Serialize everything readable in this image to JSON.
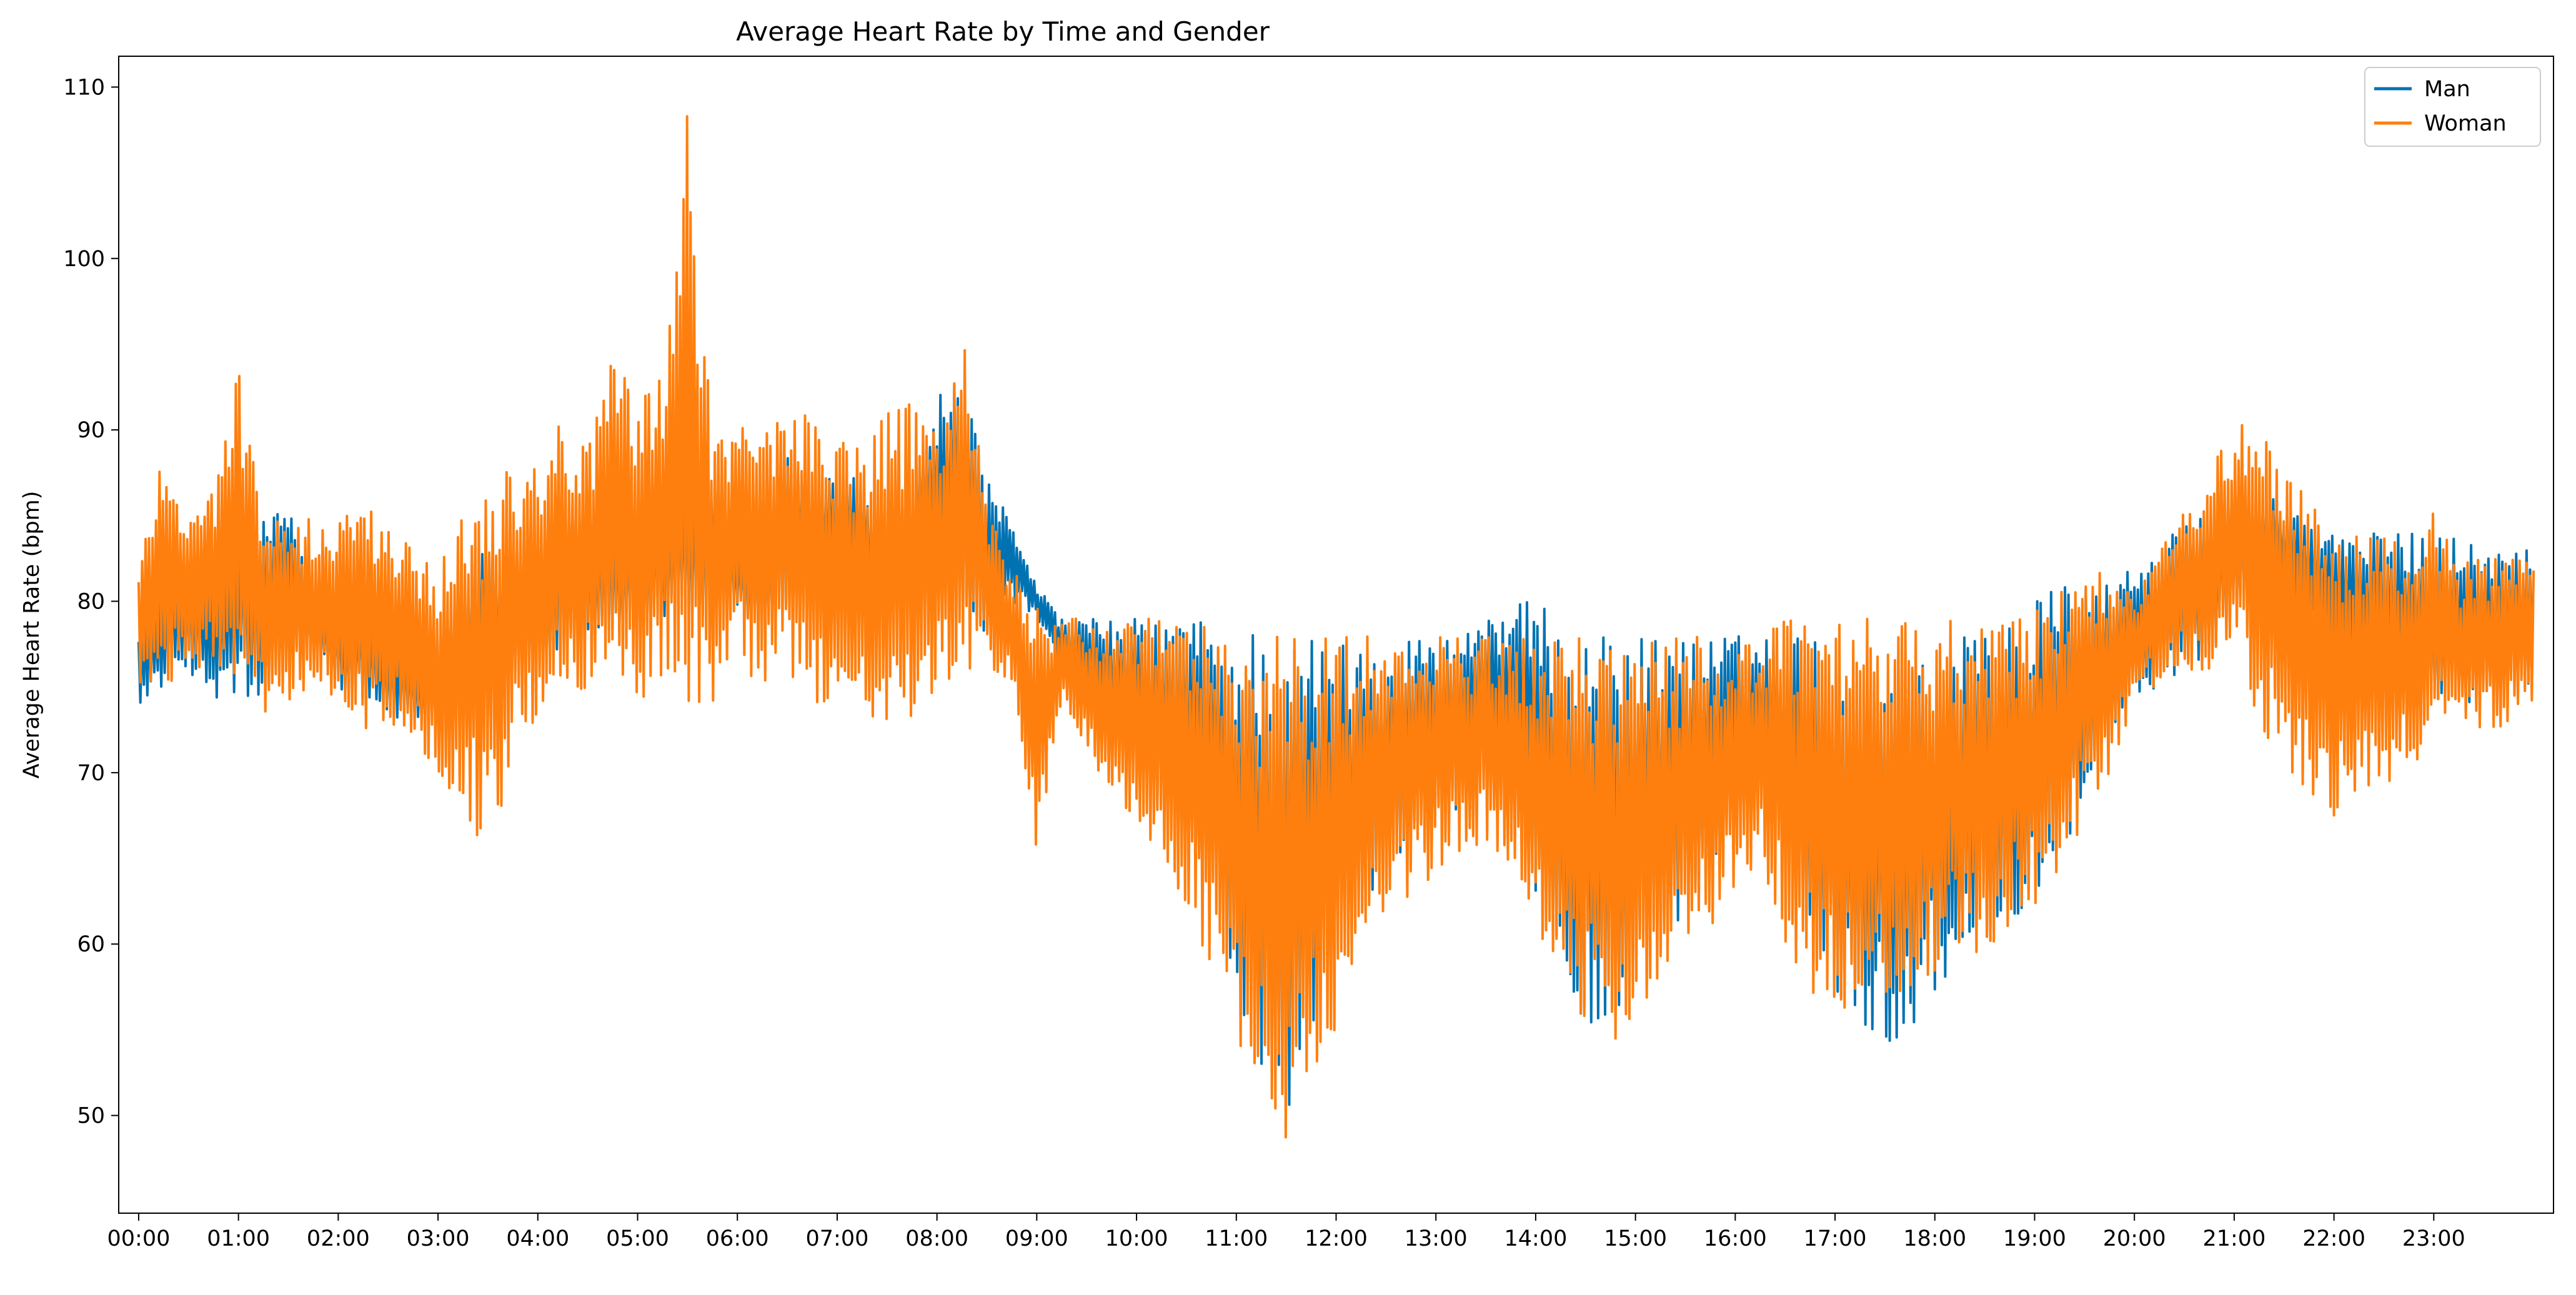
{
  "chart_data": {
    "type": "line",
    "title": "Average Heart Rate by Time and Gender",
    "xlabel": "",
    "ylabel": "Average Heart Rate (bpm)",
    "x_unit": "hours",
    "xlim": [
      -0.2,
      24.2
    ],
    "ylim": [
      44.3,
      111.8
    ],
    "grid": false,
    "legend_position": "top-right",
    "x_ticks": [
      {
        "value": 0,
        "label": "00:00"
      },
      {
        "value": 1,
        "label": "01:00"
      },
      {
        "value": 2,
        "label": "02:00"
      },
      {
        "value": 3,
        "label": "03:00"
      },
      {
        "value": 4,
        "label": "04:00"
      },
      {
        "value": 5,
        "label": "05:00"
      },
      {
        "value": 6,
        "label": "06:00"
      },
      {
        "value": 7,
        "label": "07:00"
      },
      {
        "value": 8,
        "label": "08:00"
      },
      {
        "value": 9,
        "label": "09:00"
      },
      {
        "value": 10,
        "label": "10:00"
      },
      {
        "value": 11,
        "label": "11:00"
      },
      {
        "value": 12,
        "label": "12:00"
      },
      {
        "value": 13,
        "label": "13:00"
      },
      {
        "value": 14,
        "label": "14:00"
      },
      {
        "value": 15,
        "label": "15:00"
      },
      {
        "value": 16,
        "label": "16:00"
      },
      {
        "value": 17,
        "label": "17:00"
      },
      {
        "value": 18,
        "label": "18:00"
      },
      {
        "value": 19,
        "label": "19:00"
      },
      {
        "value": 20,
        "label": "20:00"
      },
      {
        "value": 21,
        "label": "21:00"
      },
      {
        "value": 22,
        "label": "22:00"
      },
      {
        "value": 23,
        "label": "23:00"
      }
    ],
    "y_ticks": [
      {
        "value": 50,
        "label": "50"
      },
      {
        "value": 60,
        "label": "60"
      },
      {
        "value": 70,
        "label": "70"
      },
      {
        "value": 80,
        "label": "80"
      },
      {
        "value": 90,
        "label": "90"
      },
      {
        "value": 100,
        "label": "100"
      },
      {
        "value": 110,
        "label": "110"
      }
    ],
    "series": [
      {
        "name": "Man",
        "color": "#0072b2",
        "x_step": 0.25,
        "x_start": 0,
        "upper": [
          79,
          81,
          84,
          82,
          87,
          85,
          86,
          80,
          80,
          81,
          79,
          78,
          78,
          82,
          83,
          83,
          83,
          86,
          87,
          86,
          86,
          87,
          88,
          88,
          84,
          84,
          89,
          86,
          88,
          87,
          84,
          87,
          92,
          93,
          87,
          85,
          81,
          79,
          79,
          79,
          79,
          79,
          79,
          79,
          78,
          79,
          78,
          78,
          78,
          78,
          78,
          78,
          78,
          78,
          80,
          80,
          80,
          79,
          78,
          78,
          78,
          78,
          78,
          78,
          78,
          78,
          78,
          78,
          78,
          78,
          78,
          78,
          78,
          78,
          79,
          79,
          80,
          81,
          81,
          81,
          82,
          83,
          85,
          85,
          87,
          87,
          86,
          85,
          84,
          84,
          84,
          84,
          84,
          84,
          83,
          83,
          84
        ],
        "lower": [
          74,
          75,
          76,
          74,
          74,
          74,
          76,
          77,
          75,
          74,
          73,
          73,
          73,
          73,
          74,
          75,
          76,
          77,
          78,
          78,
          78,
          79,
          79,
          79,
          79,
          79,
          79,
          80,
          80,
          80,
          80,
          80,
          81,
          79,
          78,
          80,
          79,
          76,
          73,
          71,
          69,
          67,
          65,
          62,
          57,
          52,
          50,
          54,
          58,
          61,
          64,
          66,
          67,
          68,
          69,
          67,
          63,
          58,
          55,
          56,
          57,
          59,
          62,
          64,
          66,
          68,
          66,
          60,
          57,
          55,
          54,
          55,
          57,
          59,
          60,
          61,
          63,
          65,
          68,
          72,
          74,
          75,
          76,
          77,
          79,
          80,
          79,
          78,
          76,
          75,
          74,
          74,
          74,
          74,
          74,
          74,
          75
        ]
      },
      {
        "name": "Woman",
        "color": "#ff7f0e",
        "x_step": 0.25,
        "x_start": 0,
        "upper": [
          82,
          90,
          85,
          87,
          94,
          86,
          84,
          85,
          85,
          86,
          85,
          83,
          82,
          86,
          87,
          89,
          89,
          91,
          89,
          95,
          92,
          93,
          109,
          90,
          91,
          91,
          92,
          91,
          90,
          89,
          91,
          92,
          90,
          97,
          86,
          82,
          80,
          79,
          79,
          79,
          79,
          79,
          79,
          79,
          78,
          78,
          78,
          78,
          78,
          78,
          78,
          78,
          78,
          78,
          78,
          78,
          78,
          78,
          78,
          78,
          78,
          78,
          78,
          78,
          78,
          78,
          79,
          79,
          79,
          79,
          79,
          79,
          79,
          79,
          79,
          79,
          80,
          81,
          82,
          82,
          81,
          83,
          86,
          88,
          90,
          91,
          88,
          86,
          84,
          84,
          84,
          83,
          86,
          82,
          83,
          83,
          83
        ],
        "lower": [
          75,
          74,
          76,
          76,
          74,
          73,
          74,
          75,
          74,
          72,
          73,
          72,
          70,
          68,
          65,
          70,
          73,
          74,
          75,
          75,
          74,
          75,
          74,
          74,
          76,
          75,
          75,
          74,
          74,
          73,
          73,
          71,
          75,
          75,
          76,
          75,
          65,
          74,
          71,
          68,
          66,
          64,
          62,
          58,
          54,
          50,
          48,
          52,
          55,
          58,
          61,
          63,
          64,
          65,
          66,
          64,
          60,
          57,
          55,
          54,
          55,
          57,
          59,
          61,
          63,
          65,
          60,
          57,
          56,
          56,
          56,
          57,
          58,
          59,
          59,
          61,
          62,
          64,
          67,
          70,
          74,
          75,
          76,
          76,
          77,
          73,
          70,
          68,
          67,
          68,
          69,
          70,
          72,
          73,
          72,
          73,
          74
        ]
      }
    ]
  }
}
